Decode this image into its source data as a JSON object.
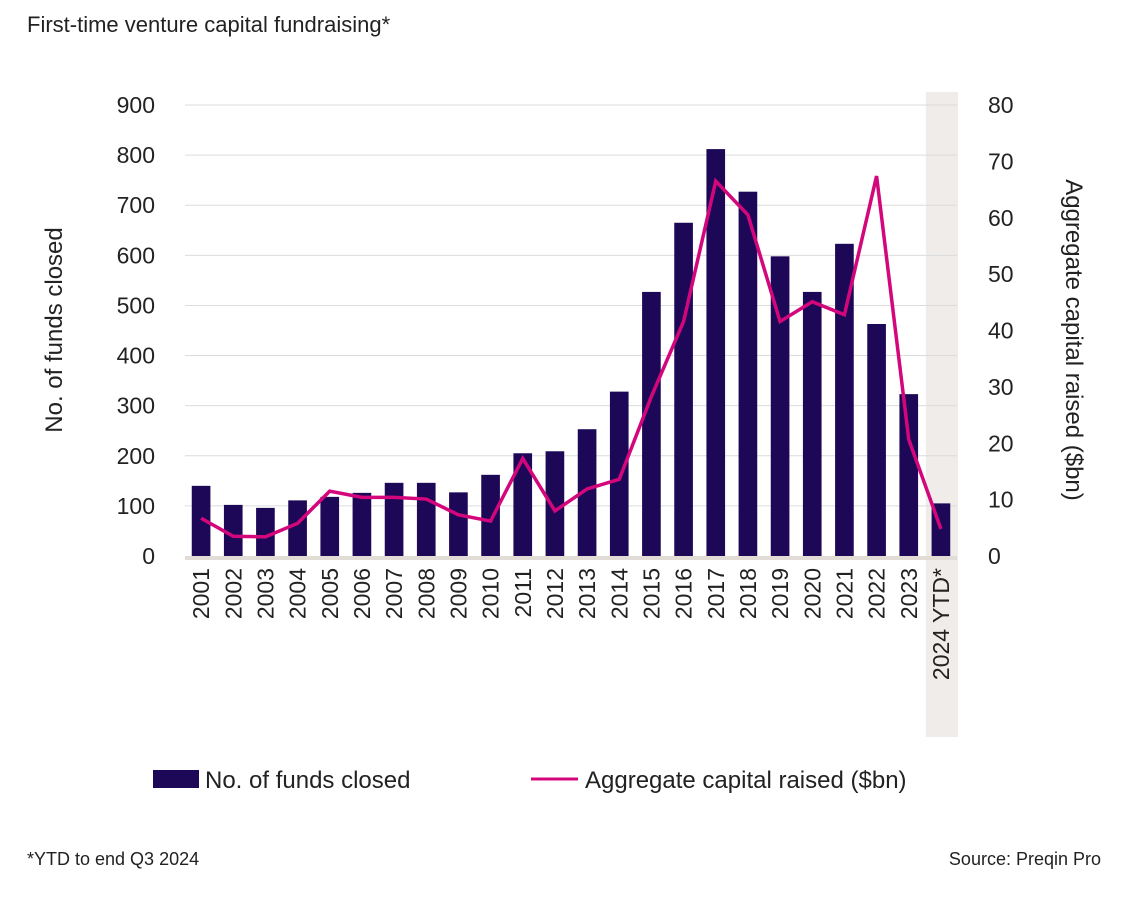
{
  "chart_data": {
    "type": "bar+line",
    "title": "First-time venture capital fundraising*",
    "categories": [
      "2001",
      "2002",
      "2003",
      "2004",
      "2005",
      "2006",
      "2007",
      "2008",
      "2009",
      "2010",
      "2011",
      "2012",
      "2013",
      "2014",
      "2015",
      "2016",
      "2017",
      "2018",
      "2019",
      "2020",
      "2021",
      "2022",
      "2023",
      "2024 YTD*"
    ],
    "series": [
      {
        "name": "No. of funds closed",
        "type": "bar",
        "axis": "left",
        "color": "#1c0856",
        "values": [
          140,
          102,
          96,
          111,
          118,
          126,
          146,
          146,
          127,
          162,
          205,
          209,
          253,
          328,
          527,
          665,
          812,
          727,
          598,
          527,
          623,
          463,
          323,
          105
        ]
      },
      {
        "name": "Aggregate capital raised ($bn)",
        "type": "line",
        "axis": "right",
        "color": "#d4067c",
        "values": [
          6.7,
          3.5,
          3.4,
          5.8,
          11.5,
          10.4,
          10.4,
          10.1,
          7.3,
          6.2,
          17.3,
          8.0,
          11.9,
          13.6,
          28.3,
          41.6,
          66.5,
          60.5,
          41.6,
          45.1,
          42.8,
          67.4,
          20.7,
          4.8
        ]
      }
    ],
    "ylabel": "No. of funds closed",
    "ylim": [
      0,
      900
    ],
    "yticks": [
      "0",
      "100",
      "200",
      "300",
      "400",
      "500",
      "600",
      "700",
      "800",
      "900"
    ],
    "y2label": "Aggregate capital raised ($bn)",
    "y2lim": [
      0,
      80
    ],
    "y2ticks": [
      "0",
      "10",
      "20",
      "30",
      "40",
      "50",
      "60",
      "70",
      "80"
    ],
    "grid": true,
    "highlight_category": "2024 YTD*",
    "highlight_color": "#efecea",
    "legend": "bottom",
    "footnote": "*YTD to end Q3 2024",
    "source": "Source: Preqin Pro"
  }
}
